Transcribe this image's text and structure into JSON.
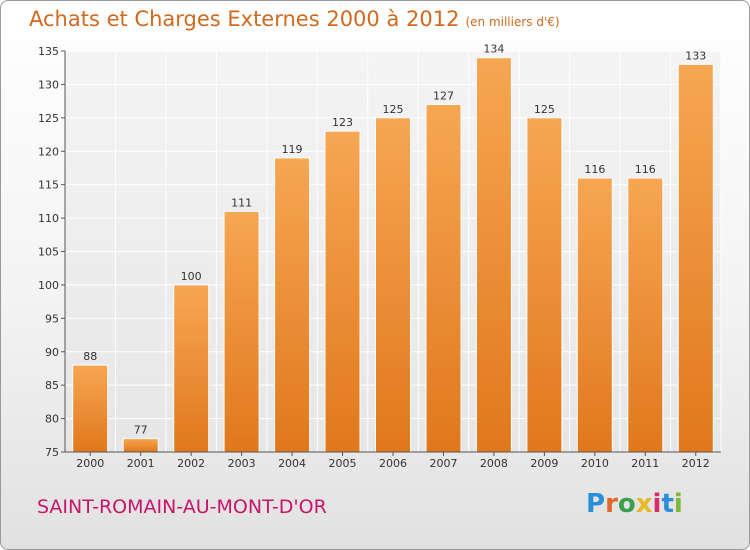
{
  "title": {
    "main": "Achats et Charges Externes 2000 à 2012",
    "unit": "(en milliers d'€)"
  },
  "commune": "SAINT-ROMAIN-AU-MONT-D'OR",
  "logo": {
    "letters": [
      "P",
      "r",
      "o",
      "x",
      "i",
      "t",
      "i"
    ],
    "colors": [
      "#2a8fd6",
      "#e0662a",
      "#3aa04c",
      "#e8b722",
      "#d92b6a",
      "#2a8fd6",
      "#7cb83a"
    ]
  },
  "chart_data": {
    "type": "bar",
    "categories": [
      "2000",
      "2001",
      "2002",
      "2003",
      "2004",
      "2005",
      "2006",
      "2007",
      "2008",
      "2009",
      "2010",
      "2011",
      "2012"
    ],
    "values": [
      88,
      77,
      100,
      111,
      119,
      123,
      125,
      127,
      134,
      125,
      116,
      116,
      133
    ],
    "ylim": [
      75,
      135
    ],
    "yticks": [
      75,
      80,
      85,
      90,
      95,
      100,
      105,
      110,
      115,
      120,
      125,
      130,
      135
    ],
    "grid": true,
    "bar_color": "#f0902f"
  }
}
